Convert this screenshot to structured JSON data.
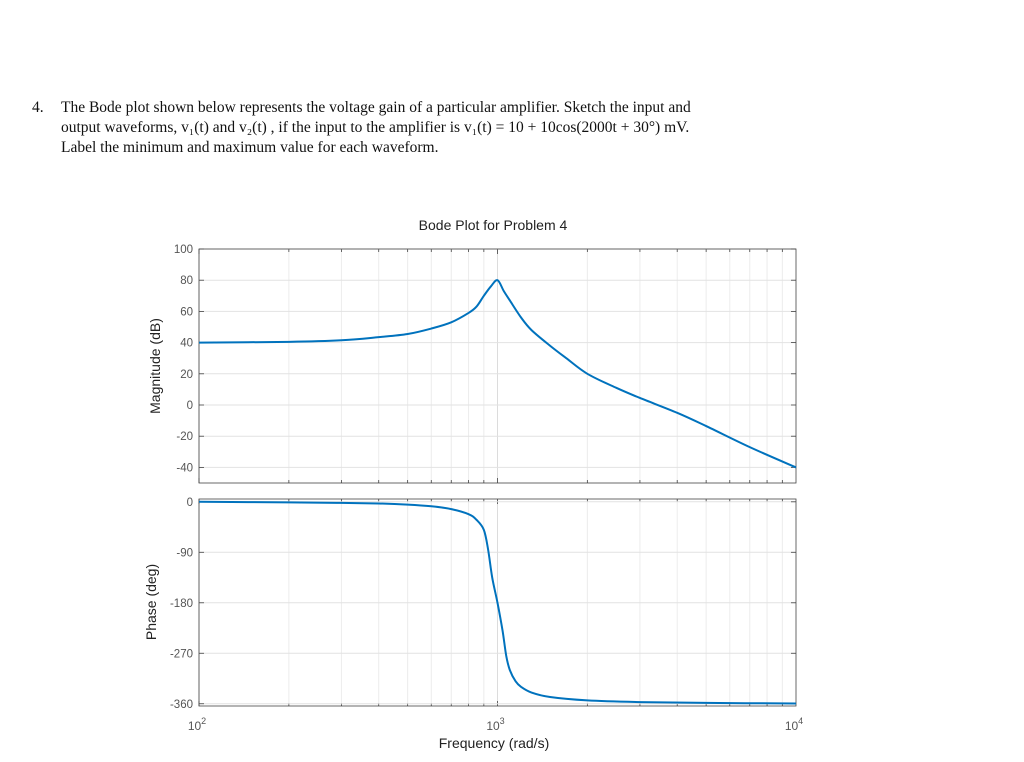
{
  "problem": {
    "number": "4.",
    "lines": [
      "The Bode plot shown below represents the voltage gain of a particular amplifier.  Sketch the input and",
      "output waveforms, v₁(t)  and v₂(t) , if the input to the amplifier is v₁(t) = 10 + 10cos(2000t + 30°) mV.",
      "Label the minimum and maximum value for each waveform."
    ]
  },
  "chart_data": [
    {
      "type": "line",
      "title": "Bode Plot for Problem 4",
      "ylabel": "Magnitude (dB)",
      "xscale": "log",
      "xlim": [
        100,
        10000
      ],
      "ylim": [
        -50,
        100
      ],
      "yticks": [
        "100",
        "80",
        "60",
        "40",
        "20",
        "0",
        "-20",
        "-40"
      ],
      "ytick_values": [
        100,
        80,
        60,
        40,
        20,
        0,
        -20,
        -40
      ],
      "grid": true,
      "color": "#0072BD",
      "x": [
        100,
        200,
        300,
        400,
        500,
        600,
        700,
        800,
        850,
        900,
        950,
        1000,
        1050,
        1100,
        1200,
        1300,
        1500,
        1700,
        2000,
        2500,
        3000,
        4000,
        5000,
        7000,
        10000
      ],
      "values": [
        40,
        40.5,
        41.5,
        43.5,
        45.5,
        49,
        53,
        59,
        63,
        70,
        76,
        80,
        73,
        67,
        56,
        48,
        38,
        30,
        20,
        11,
        4.5,
        -5,
        -13.5,
        -27,
        -40
      ]
    },
    {
      "type": "line",
      "ylabel": "Phase (deg)",
      "xlabel": "Frequency  (rad/s)",
      "xscale": "log",
      "xlim": [
        100,
        10000
      ],
      "ylim": [
        -364,
        5
      ],
      "xticks": [
        {
          "base": "10",
          "exp": "2"
        },
        {
          "base": "10",
          "exp": "3"
        },
        {
          "base": "10",
          "exp": "4"
        }
      ],
      "yticks": [
        "0",
        "-90",
        "-180",
        "-270",
        "-360"
      ],
      "ytick_values": [
        0,
        -90,
        -180,
        -270,
        -360
      ],
      "grid": true,
      "color": "#0072BD",
      "x": [
        100,
        200,
        300,
        400,
        500,
        600,
        700,
        800,
        850,
        900,
        930,
        960,
        1000,
        1040,
        1070,
        1100,
        1150,
        1200,
        1300,
        1500,
        2000,
        3000,
        5000,
        10000
      ],
      "values": [
        0,
        -1,
        -2,
        -3,
        -5,
        -8,
        -13,
        -22,
        -32,
        -50,
        -85,
        -135,
        -180,
        -230,
        -275,
        -300,
        -320,
        -330,
        -340,
        -348,
        -354,
        -357,
        -358.5,
        -359.5
      ]
    }
  ]
}
